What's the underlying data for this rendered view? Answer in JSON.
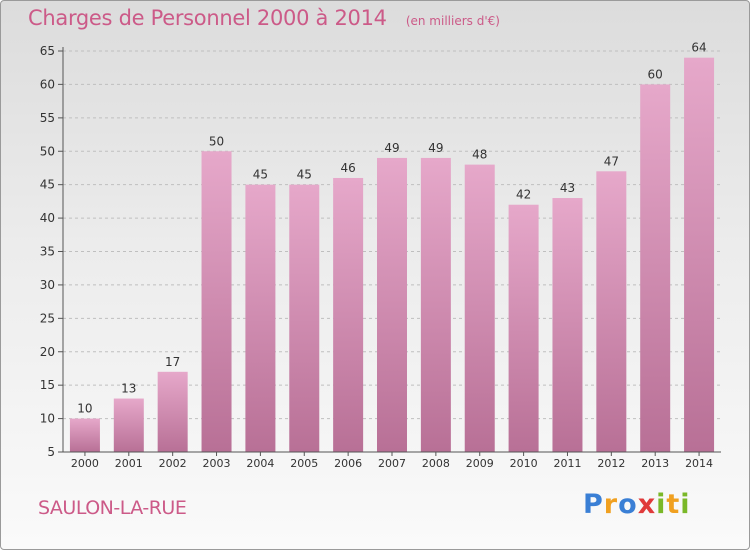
{
  "header": {
    "title": "Charges de Personnel 2000 à 2014",
    "unit": "(en milliers d'€)"
  },
  "footer": {
    "town": "SAULON-LA-RUE",
    "brand_letters": [
      "P",
      "r",
      "o",
      "x",
      "i",
      "t",
      "i"
    ],
    "brand_colors": [
      "#3a7fd5",
      "#f0a020",
      "#3a7fd5",
      "#e03a3a",
      "#7ab828",
      "#f0a020",
      "#7ab828"
    ]
  },
  "colors": {
    "bar_top": "#e6a8ca",
    "bar_bottom": "#b87096",
    "accent": "#cc5a88",
    "grid": "#bfbfbf"
  },
  "chart_data": {
    "type": "bar",
    "title": "Charges de Personnel 2000 à 2014",
    "subtitle": "(en milliers d'€)",
    "xlabel": "",
    "ylabel": "",
    "categories": [
      "2000",
      "2001",
      "2002",
      "2003",
      "2004",
      "2005",
      "2006",
      "2007",
      "2008",
      "2009",
      "2010",
      "2011",
      "2012",
      "2013",
      "2014"
    ],
    "values": [
      10,
      13,
      17,
      50,
      45,
      45,
      46,
      49,
      49,
      48,
      42,
      43,
      47,
      60,
      64
    ],
    "ylim": [
      5,
      65
    ],
    "yticks": [
      5,
      10,
      15,
      20,
      25,
      30,
      35,
      40,
      45,
      50,
      55,
      60,
      65
    ],
    "grid": true,
    "data_labels": true
  }
}
